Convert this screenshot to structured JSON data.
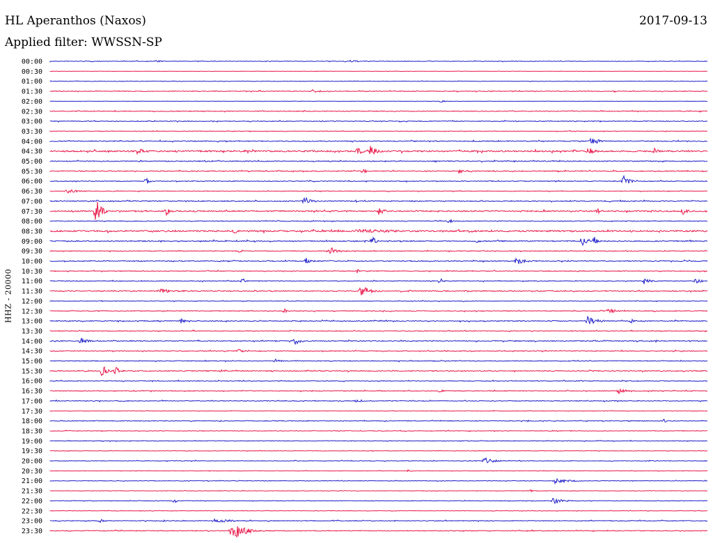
{
  "header": {
    "station": "HL Aperanthos (Naxos)",
    "date": "2017-09-13",
    "filter_prefix": "Applied filter:",
    "filter_name": "WWSSN-SP"
  },
  "channel": "HHZ - 20000",
  "colors": {
    "even_row": "#1e1ec8",
    "odd_row": "#e8194a"
  },
  "chart_data": {
    "type": "line",
    "title": "HL Aperanthos (Naxos)",
    "subtitle": "Applied filter: WWSSN-SP",
    "ylabel": "HHZ - 20000",
    "row_labels": [
      "00:00",
      "00:30",
      "01:00",
      "01:30",
      "02:00",
      "02:30",
      "03:00",
      "03:30",
      "04:00",
      "04:30",
      "05:00",
      "05:30",
      "06:00",
      "06:30",
      "07:00",
      "07:30",
      "08:00",
      "08:30",
      "09:00",
      "09:30",
      "10:00",
      "10:30",
      "11:00",
      "11:30",
      "12:00",
      "12:30",
      "13:00",
      "13:30",
      "14:00",
      "14:30",
      "15:00",
      "15:30",
      "16:00",
      "16:30",
      "17:00",
      "17:30",
      "18:00",
      "18:30",
      "19:00",
      "19:30",
      "20:00",
      "20:30",
      "21:00",
      "21:30",
      "22:00",
      "22:30",
      "23:00",
      "23:30"
    ],
    "row_span_minutes": 30,
    "x_range_minutes": [
      0,
      30
    ],
    "noise_level": [
      0.4,
      0.2,
      0.3,
      0.5,
      0.2,
      0.5,
      0.5,
      0.4,
      0.6,
      1.0,
      0.6,
      0.6,
      0.5,
      0.4,
      0.6,
      0.8,
      0.5,
      1.0,
      0.7,
      0.5,
      0.6,
      0.5,
      0.5,
      0.6,
      0.4,
      0.5,
      0.6,
      0.5,
      0.6,
      0.5,
      0.5,
      0.6,
      0.5,
      0.5,
      0.5,
      0.3,
      0.5,
      0.4,
      0.4,
      0.3,
      0.4,
      0.3,
      0.4,
      0.3,
      0.4,
      0.3,
      0.5,
      0.5
    ],
    "events": [
      {
        "row": 0,
        "minute": 4.8,
        "amplitude": 2,
        "duration": 0.6
      },
      {
        "row": 0,
        "minute": 13.5,
        "amplitude": 2,
        "duration": 1.5
      },
      {
        "row": 3,
        "minute": 12.0,
        "amplitude": 3,
        "duration": 0.8
      },
      {
        "row": 4,
        "minute": 17.8,
        "amplitude": 2,
        "duration": 0.5
      },
      {
        "row": 8,
        "minute": 24.7,
        "amplitude": 6,
        "duration": 0.8
      },
      {
        "row": 9,
        "minute": 4.0,
        "amplitude": 5,
        "duration": 0.8
      },
      {
        "row": 9,
        "minute": 14.0,
        "amplitude": 6,
        "duration": 0.6
      },
      {
        "row": 9,
        "minute": 14.6,
        "amplitude": 9,
        "duration": 0.5
      },
      {
        "row": 9,
        "minute": 24.5,
        "amplitude": 7,
        "duration": 0.7
      },
      {
        "row": 9,
        "minute": 27.6,
        "amplitude": 5,
        "duration": 0.4
      },
      {
        "row": 11,
        "minute": 14.3,
        "amplitude": 5,
        "duration": 0.3
      },
      {
        "row": 11,
        "minute": 18.7,
        "amplitude": 4,
        "duration": 0.6
      },
      {
        "row": 12,
        "minute": 4.4,
        "amplitude": 6,
        "duration": 0.3
      },
      {
        "row": 12,
        "minute": 26.2,
        "amplitude": 9,
        "duration": 0.5
      },
      {
        "row": 13,
        "minute": 0.8,
        "amplitude": 3,
        "duration": 1.2
      },
      {
        "row": 14,
        "minute": 11.6,
        "amplitude": 7,
        "duration": 0.6
      },
      {
        "row": 15,
        "minute": 2.1,
        "amplitude": 18,
        "duration": 0.5
      },
      {
        "row": 15,
        "minute": 5.3,
        "amplitude": 6,
        "duration": 0.4
      },
      {
        "row": 15,
        "minute": 15.0,
        "amplitude": 6,
        "duration": 0.5
      },
      {
        "row": 15,
        "minute": 25.0,
        "amplitude": 4,
        "duration": 0.4
      },
      {
        "row": 15,
        "minute": 28.9,
        "amplitude": 5,
        "duration": 0.5
      },
      {
        "row": 16,
        "minute": 18.2,
        "amplitude": 3,
        "duration": 0.5
      },
      {
        "row": 17,
        "minute": 8.4,
        "amplitude": 5,
        "duration": 0.3
      },
      {
        "row": 17,
        "minute": 14.0,
        "amplitude": 3,
        "duration": 5.0
      },
      {
        "row": 18,
        "minute": 14.7,
        "amplitude": 7,
        "duration": 0.4
      },
      {
        "row": 18,
        "minute": 19.5,
        "amplitude": 4,
        "duration": 0.3
      },
      {
        "row": 18,
        "minute": 24.3,
        "amplitude": 8,
        "duration": 0.6
      },
      {
        "row": 18,
        "minute": 24.8,
        "amplitude": 9,
        "duration": 0.3
      },
      {
        "row": 19,
        "minute": 8.6,
        "amplitude": 5,
        "duration": 0.3
      },
      {
        "row": 19,
        "minute": 12.8,
        "amplitude": 6,
        "duration": 0.8
      },
      {
        "row": 20,
        "minute": 11.7,
        "amplitude": 5,
        "duration": 0.5
      },
      {
        "row": 20,
        "minute": 21.3,
        "amplitude": 5,
        "duration": 1.2
      },
      {
        "row": 21,
        "minute": 14.0,
        "amplitude": 4,
        "duration": 0.3
      },
      {
        "row": 22,
        "minute": 8.8,
        "amplitude": 4,
        "duration": 0.3
      },
      {
        "row": 22,
        "minute": 17.8,
        "amplitude": 5,
        "duration": 0.3
      },
      {
        "row": 22,
        "minute": 27.1,
        "amplitude": 6,
        "duration": 0.5
      },
      {
        "row": 22,
        "minute": 29.5,
        "amplitude": 5,
        "duration": 0.4
      },
      {
        "row": 23,
        "minute": 5.0,
        "amplitude": 3,
        "duration": 2.0
      },
      {
        "row": 23,
        "minute": 14.2,
        "amplitude": 8,
        "duration": 0.9
      },
      {
        "row": 25,
        "minute": 10.7,
        "amplitude": 4,
        "duration": 0.2
      },
      {
        "row": 25,
        "minute": 25.5,
        "amplitude": 4,
        "duration": 0.8
      },
      {
        "row": 26,
        "minute": 6.0,
        "amplitude": 4,
        "duration": 0.3
      },
      {
        "row": 26,
        "minute": 24.5,
        "amplitude": 7,
        "duration": 1.0
      },
      {
        "row": 26,
        "minute": 26.5,
        "amplitude": 5,
        "duration": 0.3
      },
      {
        "row": 28,
        "minute": 1.4,
        "amplitude": 5,
        "duration": 0.7
      },
      {
        "row": 28,
        "minute": 11.2,
        "amplitude": 7,
        "duration": 0.5
      },
      {
        "row": 29,
        "minute": 8.6,
        "amplitude": 3,
        "duration": 0.6
      },
      {
        "row": 30,
        "minute": 10.3,
        "amplitude": 3,
        "duration": 0.5
      },
      {
        "row": 31,
        "minute": 2.4,
        "amplitude": 10,
        "duration": 0.4
      },
      {
        "row": 31,
        "minute": 3.0,
        "amplitude": 6,
        "duration": 0.5
      },
      {
        "row": 33,
        "minute": 26.0,
        "amplitude": 6,
        "duration": 0.5
      },
      {
        "row": 33,
        "minute": 17.8,
        "amplitude": 3,
        "duration": 0.4
      },
      {
        "row": 34,
        "minute": 14.0,
        "amplitude": 3,
        "duration": 0.6
      },
      {
        "row": 36,
        "minute": 28.0,
        "amplitude": 3,
        "duration": 0.3
      },
      {
        "row": 40,
        "minute": 19.8,
        "amplitude": 5,
        "duration": 1.0
      },
      {
        "row": 41,
        "minute": 16.4,
        "amplitude": 3,
        "duration": 0.2
      },
      {
        "row": 42,
        "minute": 23.0,
        "amplitude": 4,
        "duration": 1.5
      },
      {
        "row": 43,
        "minute": 21.9,
        "amplitude": 2,
        "duration": 0.5
      },
      {
        "row": 44,
        "minute": 5.7,
        "amplitude": 4,
        "duration": 0.2
      },
      {
        "row": 44,
        "minute": 23.0,
        "amplitude": 6,
        "duration": 0.8
      },
      {
        "row": 46,
        "minute": 2.3,
        "amplitude": 3,
        "duration": 0.4
      },
      {
        "row": 46,
        "minute": 7.5,
        "amplitude": 3,
        "duration": 2.0
      },
      {
        "row": 47,
        "minute": 8.3,
        "amplitude": 14,
        "duration": 1.2
      }
    ]
  }
}
